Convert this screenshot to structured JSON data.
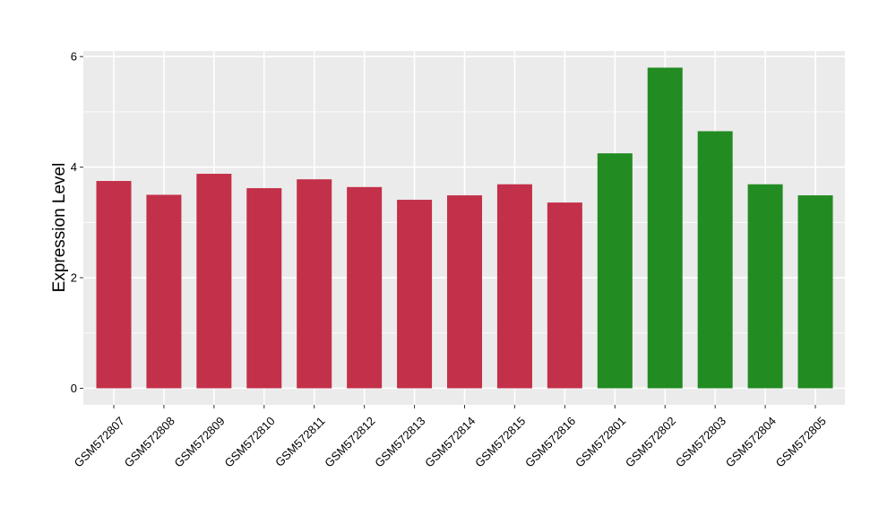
{
  "chart_data": {
    "type": "bar",
    "ylabel": "Expression Level",
    "xlabel": "",
    "ylim": [
      -0.3,
      6.1
    ],
    "yticks": [
      0,
      2,
      4,
      6
    ],
    "grid": true,
    "categories": [
      "GSM572807",
      "GSM572808",
      "GSM572809",
      "GSM572810",
      "GSM572811",
      "GSM572812",
      "GSM572813",
      "GSM572814",
      "GSM572815",
      "GSM572816",
      "GSM572801",
      "GSM572802",
      "GSM572803",
      "GSM572804",
      "GSM572805"
    ],
    "values": [
      3.75,
      3.5,
      3.88,
      3.62,
      3.78,
      3.64,
      3.41,
      3.49,
      3.69,
      3.36,
      4.25,
      5.8,
      4.65,
      3.69,
      3.49
    ],
    "bar_colors": [
      "#c33049",
      "#c33049",
      "#c33049",
      "#c33049",
      "#c33049",
      "#c33049",
      "#c33049",
      "#c33049",
      "#c33049",
      "#c33049",
      "#228b22",
      "#228b22",
      "#228b22",
      "#228b22",
      "#228b22"
    ],
    "panel_background": "#ebebeb",
    "grid_color": "#ffffff"
  }
}
